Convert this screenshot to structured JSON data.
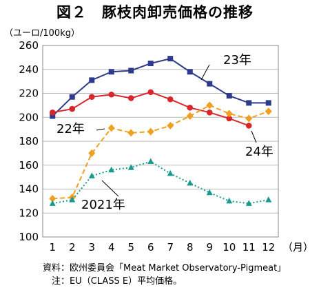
{
  "title": "図２　豚枝肉卸売価格の推移",
  "notes": {
    "source": "資料：欧州委員会「Meat Market Observatory-Pigmeat」",
    "note": "　注：EU（CLASS E）平均価格。"
  },
  "chart_data": {
    "type": "line",
    "ylabel": "（ユーロ/100kg）",
    "xunit": "（月）",
    "categories": [
      "1",
      "2",
      "3",
      "4",
      "5",
      "6",
      "7",
      "8",
      "9",
      "10",
      "11",
      "12"
    ],
    "ylim": [
      100,
      260
    ],
    "yticks": [
      100,
      120,
      140,
      160,
      180,
      200,
      220,
      240,
      260
    ],
    "grid": "horizontal",
    "series": [
      {
        "name": "23年",
        "color": "#2e3a8c",
        "marker": "square",
        "dash": "solid",
        "values": [
          201,
          217,
          231,
          238,
          239,
          245,
          249,
          238,
          228,
          218,
          212,
          212
        ]
      },
      {
        "name": "24年",
        "color": "#d8262d",
        "marker": "circle",
        "dash": "solid",
        "values": [
          204,
          207,
          217,
          219,
          216,
          221,
          215,
          208,
          204,
          199,
          193,
          null
        ]
      },
      {
        "name": "22年",
        "color": "#f0a020",
        "marker": "diamond",
        "dash": "dashed",
        "values": [
          132,
          133,
          170,
          191,
          187,
          188,
          193,
          201,
          210,
          203,
          199,
          205
        ]
      },
      {
        "name": "2021年",
        "color": "#1a9a8e",
        "marker": "triangle",
        "dash": "dotted",
        "values": [
          128,
          131,
          151,
          156,
          158,
          163,
          153,
          145,
          137,
          130,
          128,
          131
        ]
      }
    ]
  }
}
